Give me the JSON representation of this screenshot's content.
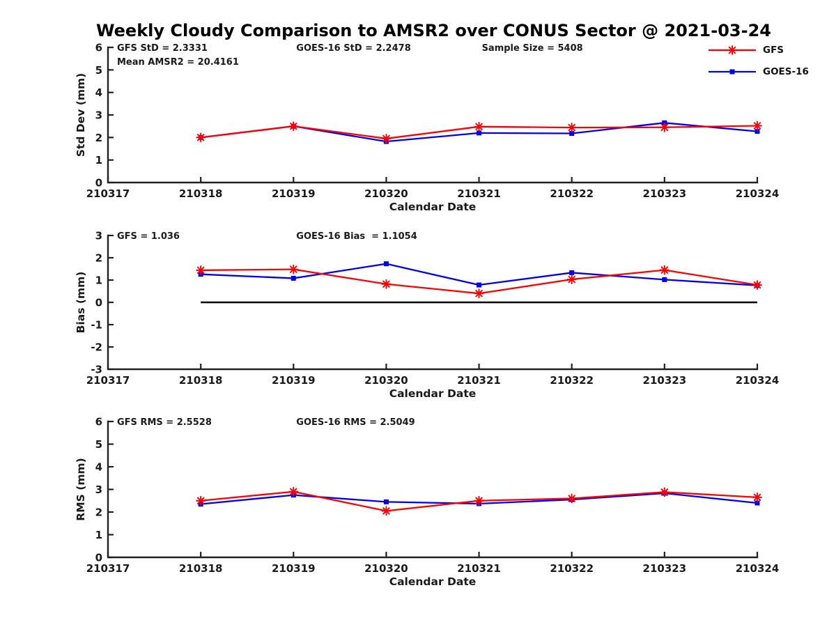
{
  "title": "Weekly Cloudy Comparison to AMSR2 over CONUS Sector @ 2021-03-24",
  "colors": {
    "gfs": "#FF0000",
    "goes16": "#0000EE",
    "axis": "#212121",
    "text": "#1a1a1a",
    "zero_line": "#000000",
    "background": "#ffffff"
  },
  "legend": {
    "entries": [
      {
        "label": "GFS",
        "color": "#FF0000",
        "marker": "asterisk"
      },
      {
        "label": "GOES-16",
        "color": "#0000EE",
        "marker": "square"
      }
    ]
  },
  "chart_data": [
    {
      "id": "stddev",
      "type": "line",
      "ylabel": "Std Dev (mm)",
      "xlabel": "Calendar Date",
      "ylim": [
        0,
        6
      ],
      "yticks": [
        0,
        1,
        2,
        3,
        4,
        5,
        6
      ],
      "x_ticks": [
        "210317",
        "210318",
        "210319",
        "210320",
        "210321",
        "210322",
        "210323",
        "210324"
      ],
      "annotations": [
        {
          "text": "GFS StD = 2.3331",
          "tick": 0,
          "line": 0
        },
        {
          "text": "Mean AMSR2 = 20.4161",
          "tick": 0,
          "line": 1
        },
        {
          "text": "GOES-16 StD = 2.2478",
          "tick": 2,
          "line": 0
        },
        {
          "text": "Sample Size = 5408",
          "tick": 4,
          "line": 0
        }
      ],
      "series": [
        {
          "name": "GFS",
          "color": "#FF0000",
          "marker": "asterisk",
          "x": [
            "210318",
            "210319",
            "210320",
            "210321",
            "210322",
            "210323",
            "210324"
          ],
          "values": [
            2.0,
            2.5,
            1.95,
            2.48,
            2.44,
            2.45,
            2.52
          ]
        },
        {
          "name": "GOES-16",
          "color": "#0000EE",
          "marker": "square",
          "x": [
            "210318",
            "210319",
            "210320",
            "210321",
            "210322",
            "210323",
            "210324"
          ],
          "values": [
            2.0,
            2.5,
            1.82,
            2.2,
            2.18,
            2.65,
            2.27
          ]
        }
      ]
    },
    {
      "id": "bias",
      "type": "line",
      "ylabel": "Bias (mm)",
      "xlabel": "Calendar Date",
      "ylim": [
        -3,
        3
      ],
      "yticks": [
        -3,
        -2,
        -1,
        0,
        1,
        2,
        3
      ],
      "x_ticks": [
        "210317",
        "210318",
        "210319",
        "210320",
        "210321",
        "210322",
        "210323",
        "210324"
      ],
      "zero_line": {
        "y": 0,
        "x_start": "210318",
        "x_end": "210324"
      },
      "annotations": [
        {
          "text": "GFS = 1.036",
          "tick": 0,
          "line": 0
        },
        {
          "text": "GOES-16 Bias  = 1.1054",
          "tick": 2,
          "line": 0
        }
      ],
      "series": [
        {
          "name": "GFS",
          "color": "#FF0000",
          "marker": "asterisk",
          "x": [
            "210318",
            "210319",
            "210320",
            "210321",
            "210322",
            "210323",
            "210324"
          ],
          "values": [
            1.44,
            1.48,
            0.82,
            0.4,
            1.03,
            1.45,
            0.78
          ]
        },
        {
          "name": "GOES-16",
          "color": "#0000EE",
          "marker": "square",
          "x": [
            "210318",
            "210319",
            "210320",
            "210321",
            "210322",
            "210323",
            "210324"
          ],
          "values": [
            1.26,
            1.08,
            1.73,
            0.78,
            1.33,
            1.02,
            0.76
          ]
        }
      ]
    },
    {
      "id": "rms",
      "type": "line",
      "ylabel": "RMS (mm)",
      "xlabel": "Calendar Date",
      "ylim": [
        0,
        6
      ],
      "yticks": [
        0,
        1,
        2,
        3,
        4,
        5,
        6
      ],
      "x_ticks": [
        "210317",
        "210318",
        "210319",
        "210320",
        "210321",
        "210322",
        "210323",
        "210324"
      ],
      "annotations": [
        {
          "text": "GFS RMS = 2.5528",
          "tick": 0,
          "line": 0
        },
        {
          "text": "GOES-16 RMS = 2.5049",
          "tick": 2,
          "line": 0
        }
      ],
      "series": [
        {
          "name": "GFS",
          "color": "#FF0000",
          "marker": "asterisk",
          "x": [
            "210318",
            "210319",
            "210320",
            "210321",
            "210322",
            "210323",
            "210324"
          ],
          "values": [
            2.5,
            2.9,
            2.05,
            2.5,
            2.6,
            2.88,
            2.65
          ]
        },
        {
          "name": "GOES-16",
          "color": "#0000EE",
          "marker": "square",
          "x": [
            "210318",
            "210319",
            "210320",
            "210321",
            "210322",
            "210323",
            "210324"
          ],
          "values": [
            2.35,
            2.75,
            2.45,
            2.37,
            2.55,
            2.83,
            2.4
          ]
        }
      ]
    }
  ]
}
